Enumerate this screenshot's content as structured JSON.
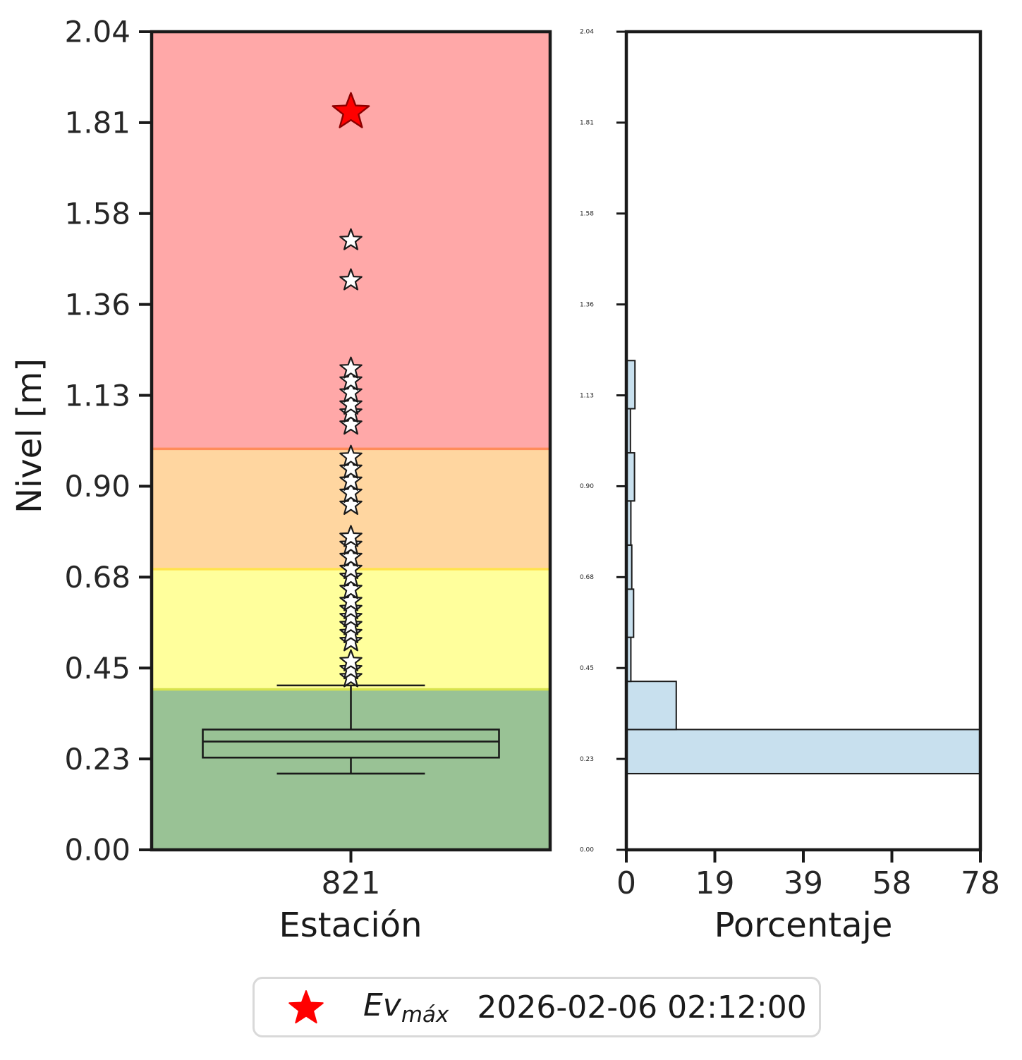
{
  "chart_data": [
    {
      "type": "boxplot",
      "panel": "left",
      "xlabel": "Estación",
      "ylabel": "Nivel [m]",
      "categories": [
        "821"
      ],
      "ylim": [
        0,
        2.04
      ],
      "ytick_labels": [
        "0.00",
        "0.23",
        "0.45",
        "0.68",
        "0.90",
        "1.13",
        "1.36",
        "1.58",
        "1.81",
        "2.04"
      ],
      "alert_zones": [
        {
          "name": "verde",
          "from": 0.0,
          "to": 0.4,
          "fill": "#99c295",
          "edge": "#d7e34d"
        },
        {
          "name": "amarilla",
          "from": 0.4,
          "to": 0.7,
          "fill": "#ffff9c",
          "edge": "#ffe34d"
        },
        {
          "name": "naranja",
          "from": 0.7,
          "to": 1.0,
          "fill": "#ffd6a0",
          "edge": "#ff8c5a"
        },
        {
          "name": "roja",
          "from": 1.0,
          "to": 2.04,
          "fill": "#ffa8a8",
          "edge": "#ff8c5a"
        }
      ],
      "box": {
        "whisker_low": 0.19,
        "q1": 0.23,
        "median": 0.27,
        "q3": 0.3,
        "whisker_high": 0.41
      },
      "outliers": [
        0.43,
        0.45,
        0.47,
        0.52,
        0.54,
        0.56,
        0.58,
        0.6,
        0.62,
        0.65,
        0.68,
        0.7,
        0.73,
        0.76,
        0.78,
        0.86,
        0.89,
        0.92,
        0.95,
        0.98,
        1.06,
        1.09,
        1.11,
        1.14,
        1.17,
        1.2,
        1.42,
        1.52
      ],
      "max_event": {
        "value": 1.84,
        "marker": "star",
        "color": "#ff0000",
        "edge": "#8b0000"
      }
    },
    {
      "type": "bar",
      "panel": "right",
      "orientation": "horizontal",
      "xlabel": "Porcentaje",
      "xlim": [
        0,
        78
      ],
      "xtick_labels": [
        "0",
        "19",
        "39",
        "58",
        "78"
      ],
      "bar_color": "#c8e0ee",
      "bins": [
        {
          "from": 0.19,
          "to": 0.3,
          "value": 78
        },
        {
          "from": 0.3,
          "to": 0.42,
          "value": 11
        },
        {
          "from": 0.42,
          "to": 0.53,
          "value": 1.0
        },
        {
          "from": 0.53,
          "to": 0.65,
          "value": 1.6
        },
        {
          "from": 0.65,
          "to": 0.76,
          "value": 1.2
        },
        {
          "from": 0.76,
          "to": 0.87,
          "value": 1.0
        },
        {
          "from": 0.87,
          "to": 0.99,
          "value": 1.8
        },
        {
          "from": 0.99,
          "to": 1.1,
          "value": 0.9
        },
        {
          "from": 1.1,
          "to": 1.22,
          "value": 1.9
        }
      ]
    }
  ],
  "legend": {
    "label_main": "Ev",
    "label_sub": "máx",
    "timestamp": "2026-02-06 02:12:00",
    "marker_color": "#ff0000"
  }
}
